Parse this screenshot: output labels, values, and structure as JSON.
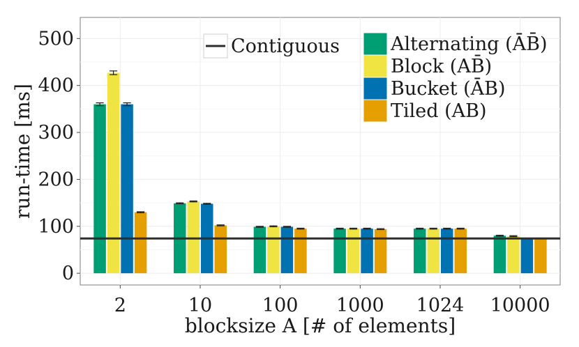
{
  "chart_data": {
    "type": "bar",
    "title": "",
    "xlabel": "blocksize A [# of elements]",
    "ylabel": "run-time [ms]",
    "ylim": [
      -25,
      545
    ],
    "yticks": [
      0,
      100,
      200,
      300,
      400,
      500
    ],
    "ytick_labels": [
      "0",
      "100",
      "200",
      "300",
      "400",
      "500"
    ],
    "categories": [
      "2",
      "10",
      "100",
      "1000",
      "1024",
      "10000"
    ],
    "series": [
      {
        "name": "Alternating (ĀB̄)",
        "color": "#009E73",
        "values": [
          360,
          149,
          99,
          95,
          95,
          80
        ],
        "errors": [
          3,
          1,
          1,
          1,
          1,
          1
        ]
      },
      {
        "name": "Block (AB̄)",
        "color": "#F0E442",
        "values": [
          427,
          153,
          100,
          95,
          95,
          79
        ],
        "errors": [
          4,
          1,
          1,
          1,
          1,
          1
        ]
      },
      {
        "name": "Bucket (ĀB)",
        "color": "#0072B2",
        "values": [
          360,
          148,
          99,
          95,
          95,
          75
        ],
        "errors": [
          3,
          1,
          1,
          1,
          1,
          0
        ]
      },
      {
        "name": "Tiled (AB)",
        "color": "#E69F00",
        "values": [
          130,
          102,
          95,
          94,
          95,
          74
        ],
        "errors": [
          1,
          1,
          1,
          1,
          1,
          0
        ]
      }
    ],
    "reference_line": {
      "name": "Contiguous",
      "value": 74,
      "color": "#2d2d2d"
    },
    "grid": true,
    "legend_position": "top-right"
  }
}
